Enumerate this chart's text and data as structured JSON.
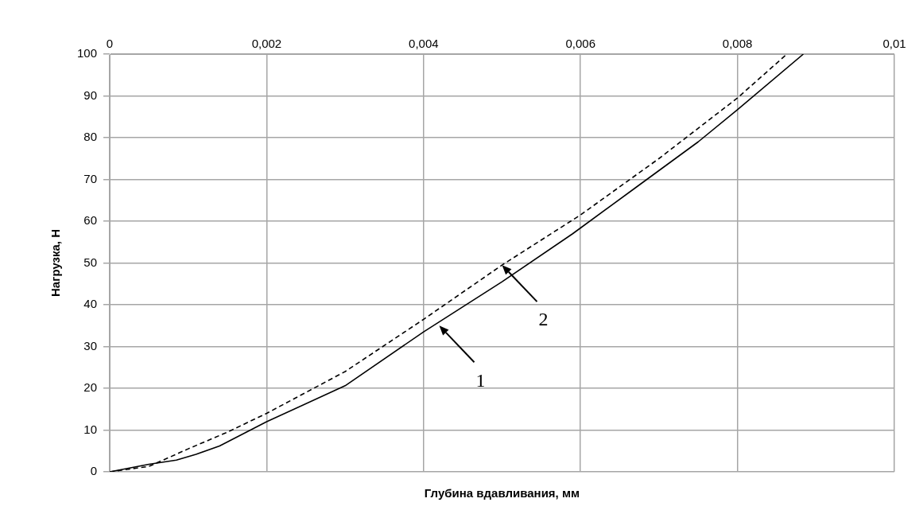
{
  "chart_data": {
    "type": "line",
    "xlabel": "Глубина вдавливания, мм",
    "ylabel": "Нагрузка, Н",
    "xlim": [
      0,
      0.01
    ],
    "xticks": [
      0,
      {
        "value": 0.002,
        "label": "0,002"
      },
      {
        "value": 0.004,
        "label": "0,004"
      },
      {
        "value": 0.006,
        "label": "0,006"
      },
      {
        "value": 0.008,
        "label": "0,008"
      },
      {
        "value": 0.01,
        "label": "0,01"
      }
    ],
    "ylim": [
      0,
      100
    ],
    "yticks": [
      0,
      10,
      20,
      30,
      40,
      50,
      60,
      70,
      80,
      90,
      100
    ],
    "grid": true,
    "legend": false,
    "marker": "none",
    "series": [
      {
        "color": "#000000",
        "line_style": "solid",
        "x": [
          0,
          0.0005,
          0.00085,
          0.0011,
          0.0014,
          0.002,
          0.003,
          0.004,
          0.005,
          0.0059,
          0.0067,
          0.0075,
          0.008,
          0.00884
        ],
        "values": [
          0,
          1.8,
          2.8,
          4.2,
          6.2,
          12,
          20.6,
          33.5,
          45.5,
          57,
          68,
          79,
          86.7,
          100
        ]
      },
      {
        "color": "#000000",
        "line_style": "dashed",
        "x": [
          0,
          0.0005,
          0.001,
          0.0015,
          0.002,
          0.003,
          0.004,
          0.005,
          0.006,
          0.007,
          0.008,
          0.00863
        ],
        "values": [
          0,
          1.3,
          5.5,
          9.5,
          14,
          24,
          36.5,
          49.5,
          61.5,
          75,
          89.5,
          100
        ]
      }
    ],
    "annotations": [
      {
        "text": "1",
        "x": 0.0042,
        "y": 35
      },
      {
        "text": "2",
        "x": 0.005,
        "y": 49.5
      }
    ]
  }
}
